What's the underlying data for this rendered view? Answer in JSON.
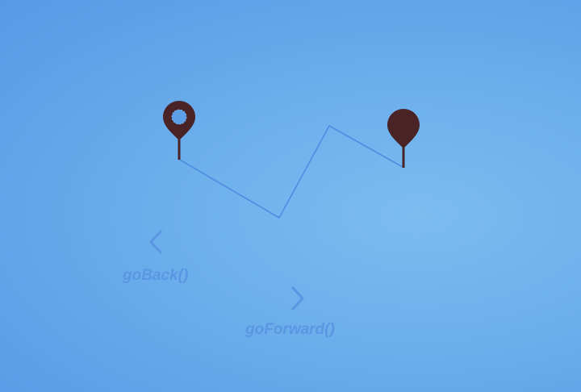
{
  "colors": {
    "route_line": "#4f8de0",
    "pin": "#4a2327",
    "pin_hole": "#5b9fe6",
    "control_muted": "#5a97e2"
  },
  "icons": {
    "start": "map-pin-hollow",
    "end": "map-pin-filled",
    "back": "chevron-left",
    "forward": "chevron-right"
  },
  "controls": {
    "back_label": "goBack()",
    "forward_label": "goForward()"
  }
}
